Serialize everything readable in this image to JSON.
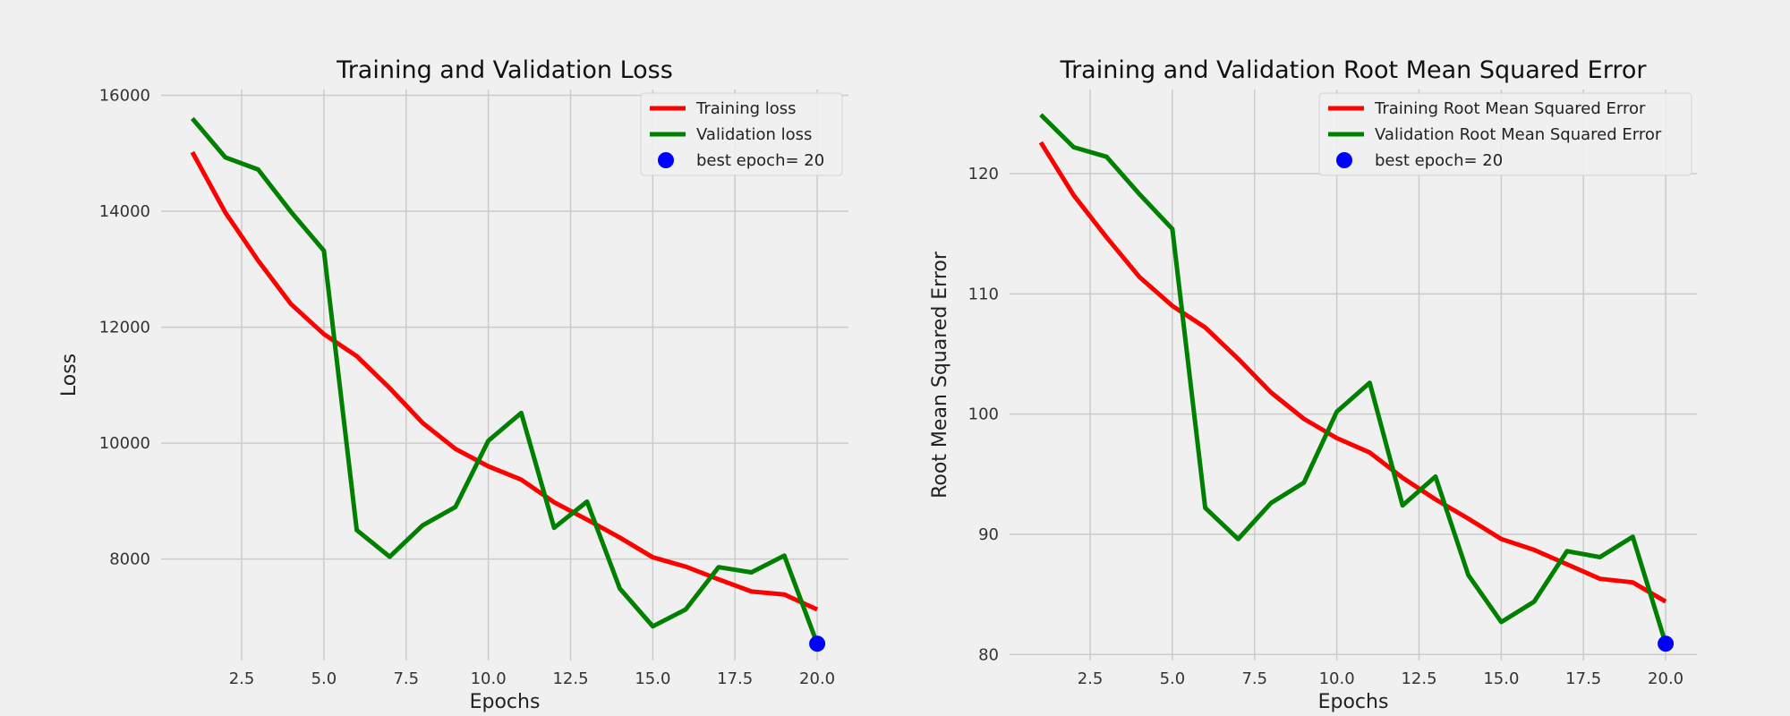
{
  "chart_data": [
    {
      "type": "line",
      "title": "Training and Validation Loss",
      "xlabel": "Epochs",
      "ylabel": "Loss",
      "xlim": [
        0.05,
        20.95
      ],
      "ylim": [
        6250,
        16100
      ],
      "xticks": [
        2.5,
        5.0,
        7.5,
        10.0,
        12.5,
        15.0,
        17.5,
        20.0
      ],
      "xtick_labels": [
        "2.5",
        "5.0",
        "7.5",
        "10.0",
        "12.5",
        "15.0",
        "17.5",
        "20.0"
      ],
      "yticks": [
        8000,
        10000,
        12000,
        14000,
        16000
      ],
      "ytick_labels": [
        "8000",
        "10000",
        "12000",
        "14000",
        "16000"
      ],
      "x": [
        1,
        2,
        3,
        4,
        5,
        6,
        7,
        8,
        9,
        10,
        11,
        12,
        13,
        14,
        15,
        16,
        17,
        18,
        19,
        20
      ],
      "series": [
        {
          "name": "Training loss",
          "color": "#ff0000",
          "values": [
            15020,
            13980,
            13150,
            12400,
            11880,
            11500,
            10950,
            10350,
            9900,
            9600,
            9370,
            8980,
            8680,
            8370,
            8030,
            7870,
            7650,
            7440,
            7390,
            7130
          ]
        },
        {
          "name": "Validation loss",
          "color": "#008000",
          "values": [
            15600,
            14930,
            14720,
            13990,
            13320,
            8500,
            8040,
            8580,
            8900,
            10040,
            10520,
            8540,
            8990,
            7490,
            6840,
            7130,
            7860,
            7770,
            8060,
            6540
          ]
        }
      ],
      "best_point": {
        "label": "best epoch= 20",
        "x": 20,
        "y": 6540,
        "color": "#0000ff"
      },
      "legend_position": "top-right",
      "grid": true
    },
    {
      "type": "line",
      "title": "Training and Validation Root Mean Squared Error",
      "xlabel": "Epochs",
      "ylabel": "Root Mean Squared Error",
      "xlim": [
        0.05,
        20.95
      ],
      "ylim": [
        79.5,
        127
      ],
      "xticks": [
        2.5,
        5.0,
        7.5,
        10.0,
        12.5,
        15.0,
        17.5,
        20.0
      ],
      "xtick_labels": [
        "2.5",
        "5.0",
        "7.5",
        "10.0",
        "12.5",
        "15.0",
        "17.5",
        "20.0"
      ],
      "yticks": [
        80,
        90,
        100,
        110,
        120
      ],
      "ytick_labels": [
        "80",
        "90",
        "100",
        "110",
        "120"
      ],
      "x": [
        1,
        2,
        3,
        4,
        5,
        6,
        7,
        8,
        9,
        10,
        11,
        12,
        13,
        14,
        15,
        16,
        17,
        18,
        19,
        20
      ],
      "series": [
        {
          "name": "Training Root Mean Squared Error",
          "color": "#ff0000",
          "values": [
            122.6,
            118.2,
            114.7,
            111.4,
            109.0,
            107.2,
            104.6,
            101.8,
            99.6,
            98.0,
            96.8,
            94.7,
            92.9,
            91.3,
            89.6,
            88.7,
            87.5,
            86.3,
            86.0,
            84.4
          ]
        },
        {
          "name": "Validation Root Mean Squared Error",
          "color": "#008000",
          "values": [
            124.9,
            122.2,
            121.4,
            118.3,
            115.4,
            92.2,
            89.6,
            92.6,
            94.3,
            100.2,
            102.6,
            92.4,
            94.8,
            86.6,
            82.7,
            84.4,
            88.6,
            88.1,
            89.8,
            80.9
          ]
        }
      ],
      "best_point": {
        "label": "best epoch= 20",
        "x": 20,
        "y": 80.9,
        "color": "#0000ff"
      },
      "legend_position": "top-right",
      "grid": true
    }
  ]
}
